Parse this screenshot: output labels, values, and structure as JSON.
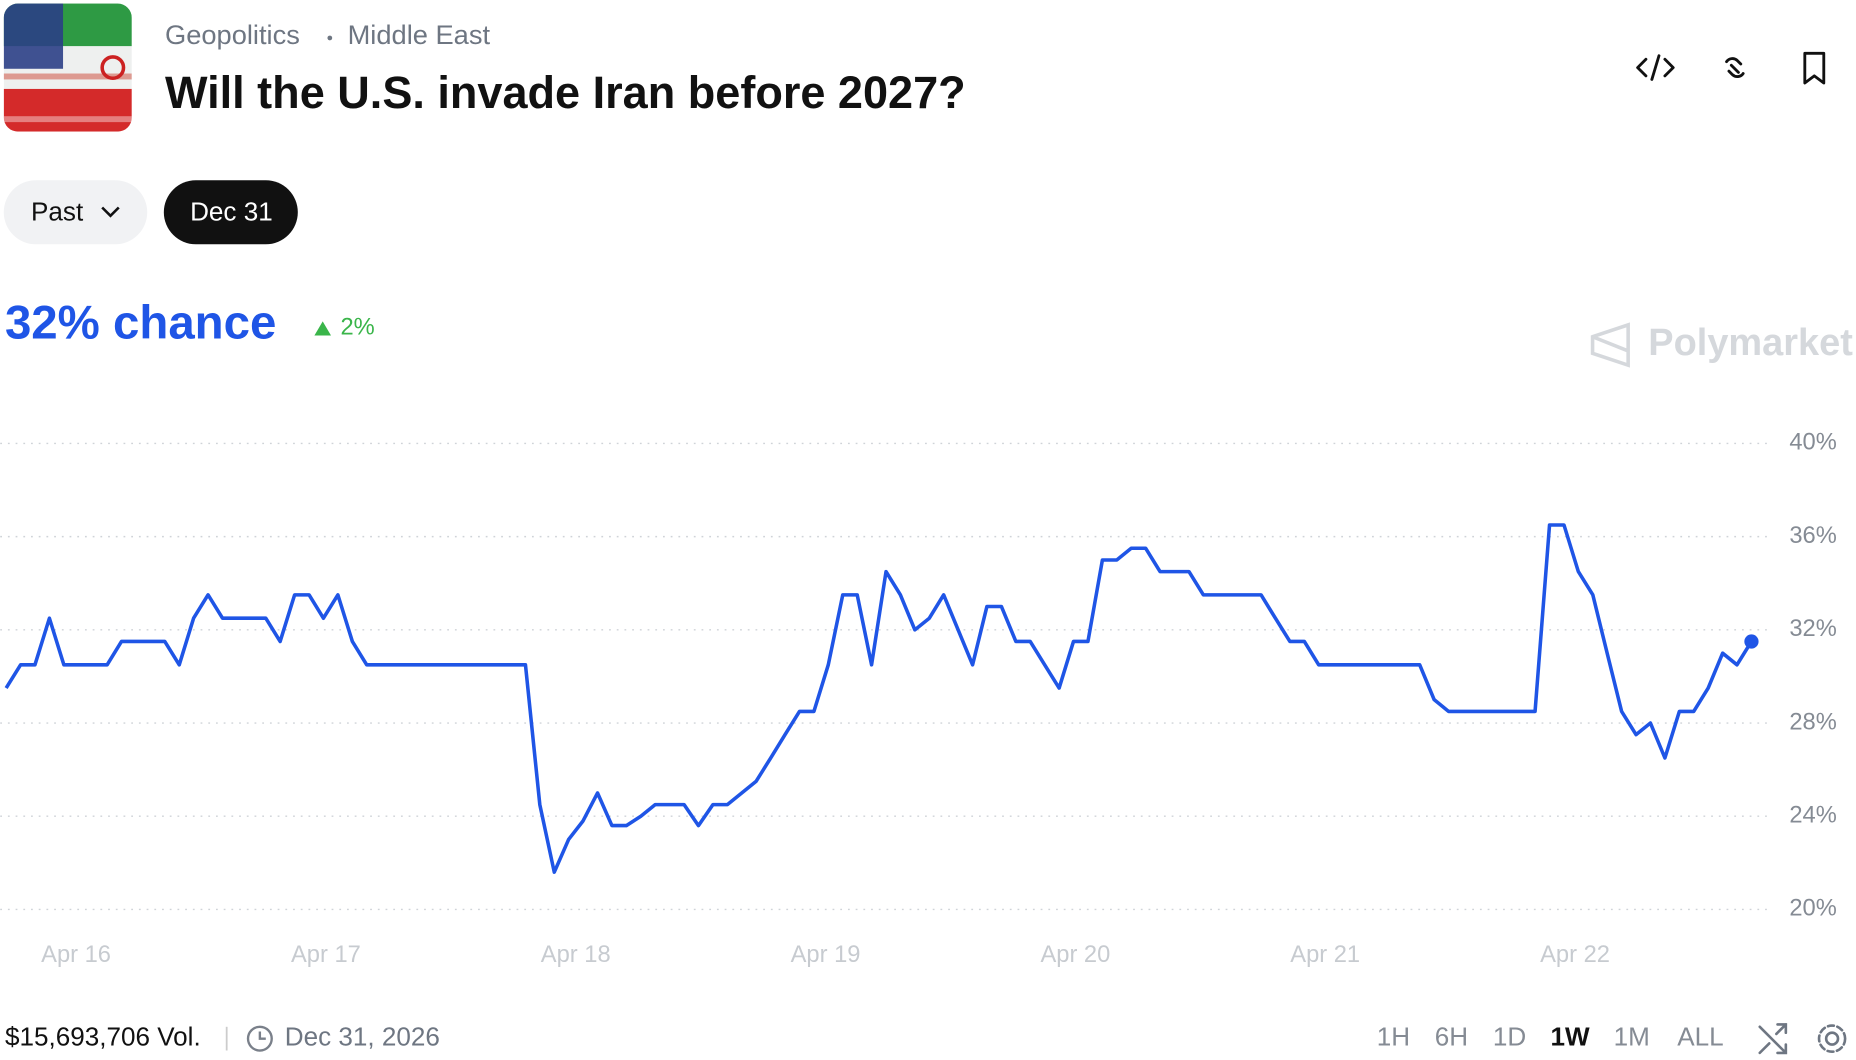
{
  "header": {
    "breadcrumb": [
      "Geopolitics",
      "Middle East"
    ],
    "title": "Will the U.S. invade Iran before 2027?"
  },
  "date_tabs": [
    "Past",
    "Dec 31"
  ],
  "probability": "32% chance",
  "change": "2%",
  "brand": "Polymarket",
  "chart_data": {
    "type": "line",
    "color": "#1f55e6",
    "grid": true,
    "xticks": [
      "Apr 16",
      "Apr 17",
      "Apr 18",
      "Apr 19",
      "Apr 20",
      "Apr 21",
      "Apr 22"
    ],
    "ylim": [
      20,
      40
    ],
    "yticks": [
      {
        "value": 20,
        "label": "20%"
      },
      {
        "value": 24,
        "label": "24%"
      },
      {
        "value": 28,
        "label": "28%"
      },
      {
        "value": 32,
        "label": "32%"
      },
      {
        "value": 36,
        "label": "36%"
      },
      {
        "value": 40,
        "label": "40%"
      }
    ],
    "values": [
      29.5,
      30.5,
      30.5,
      32.5,
      30.5,
      30.5,
      30.5,
      30.5,
      31.5,
      31.5,
      31.5,
      31.5,
      30.5,
      32.5,
      33.5,
      32.5,
      32.5,
      32.5,
      32.5,
      31.5,
      33.5,
      33.5,
      32.5,
      33.5,
      31.5,
      30.5,
      30.5,
      30.5,
      30.5,
      30.5,
      30.5,
      30.5,
      30.5,
      30.5,
      30.5,
      30.5,
      30.5,
      24.5,
      21.6,
      23.0,
      23.8,
      25.0,
      23.6,
      23.6,
      24.0,
      24.5,
      24.5,
      24.5,
      23.6,
      24.5,
      24.5,
      25.0,
      25.5,
      26.5,
      27.5,
      28.5,
      28.5,
      30.5,
      33.5,
      33.5,
      30.5,
      34.5,
      33.5,
      32.0,
      32.5,
      33.5,
      32.0,
      30.5,
      33.0,
      33.0,
      31.5,
      31.5,
      30.5,
      29.5,
      31.5,
      31.5,
      35.0,
      35.0,
      35.5,
      35.5,
      34.5,
      34.5,
      34.5,
      33.5,
      33.5,
      33.5,
      33.5,
      33.5,
      32.5,
      31.5,
      31.5,
      30.5,
      30.5,
      30.5,
      30.5,
      30.5,
      30.5,
      30.5,
      30.5,
      29.0,
      28.5,
      28.5,
      28.5,
      28.5,
      28.5,
      28.5,
      28.5,
      36.5,
      36.5,
      34.5,
      33.5,
      31.0,
      28.5,
      27.5,
      28.0,
      26.5,
      28.5,
      28.5,
      29.5,
      31.0,
      30.5,
      31.5
    ]
  },
  "footer": {
    "volume": "$15,693,706 Vol.",
    "end_date": "Dec 31, 2026",
    "ranges": [
      "1H",
      "6H",
      "1D",
      "1W",
      "1M",
      "ALL"
    ],
    "selected_range_index": 3
  }
}
